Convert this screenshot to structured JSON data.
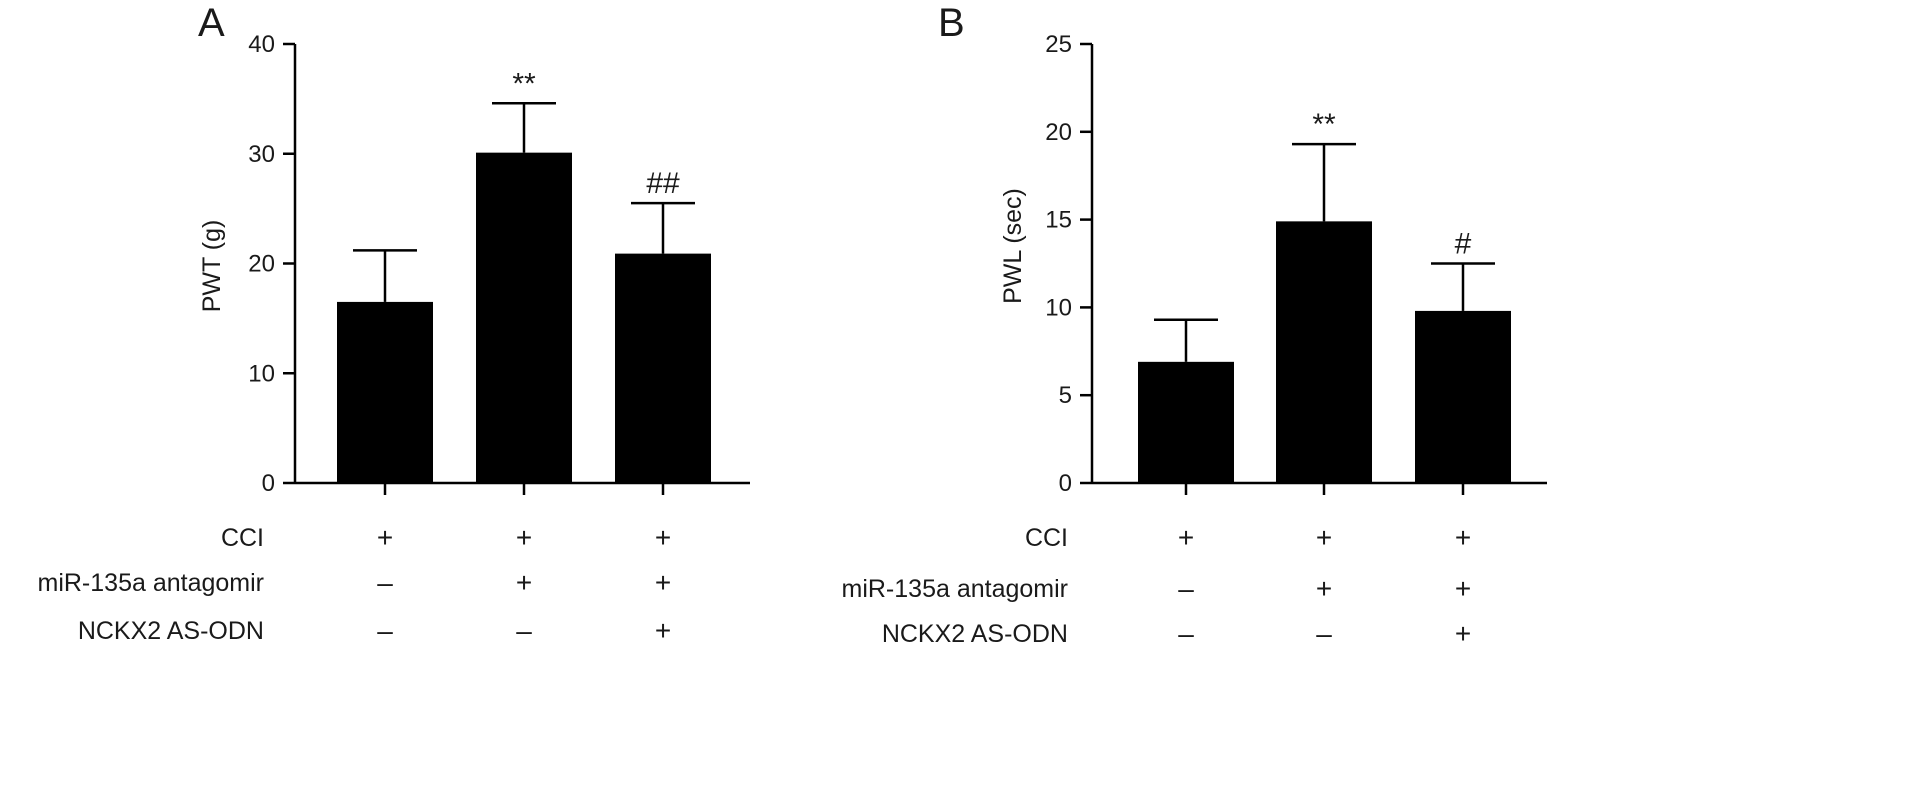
{
  "chart_data": [
    {
      "type": "bar",
      "panel_label": "A",
      "ylabel": "PWT (g)",
      "ylim": [
        0,
        40
      ],
      "yticks": [
        "0",
        "10",
        "20",
        "30",
        "40"
      ],
      "grid": false,
      "values": [
        16.5,
        30.1,
        20.9
      ],
      "errors": [
        4.7,
        4.5,
        4.6
      ],
      "annotations": [
        "",
        "**",
        "##"
      ],
      "bar_color": "#000000"
    },
    {
      "type": "bar",
      "panel_label": "B",
      "ylabel": "PWL (sec)",
      "ylim": [
        0,
        25
      ],
      "yticks": [
        "0",
        "5",
        "10",
        "15",
        "20",
        "25"
      ],
      "grid": false,
      "values": [
        6.9,
        14.9,
        9.8
      ],
      "errors": [
        2.4,
        4.4,
        2.7
      ],
      "annotations": [
        "",
        "**",
        "#"
      ],
      "bar_color": "#000000"
    }
  ],
  "conditions": {
    "rows": [
      {
        "label": "CCI",
        "signs": [
          "+",
          "+",
          "+"
        ]
      },
      {
        "label": "miR-135a antagomir",
        "signs": [
          "–",
          "+",
          "+"
        ]
      },
      {
        "label": "NCKX2 AS-ODN",
        "signs": [
          "–",
          "–",
          "+"
        ]
      }
    ]
  }
}
